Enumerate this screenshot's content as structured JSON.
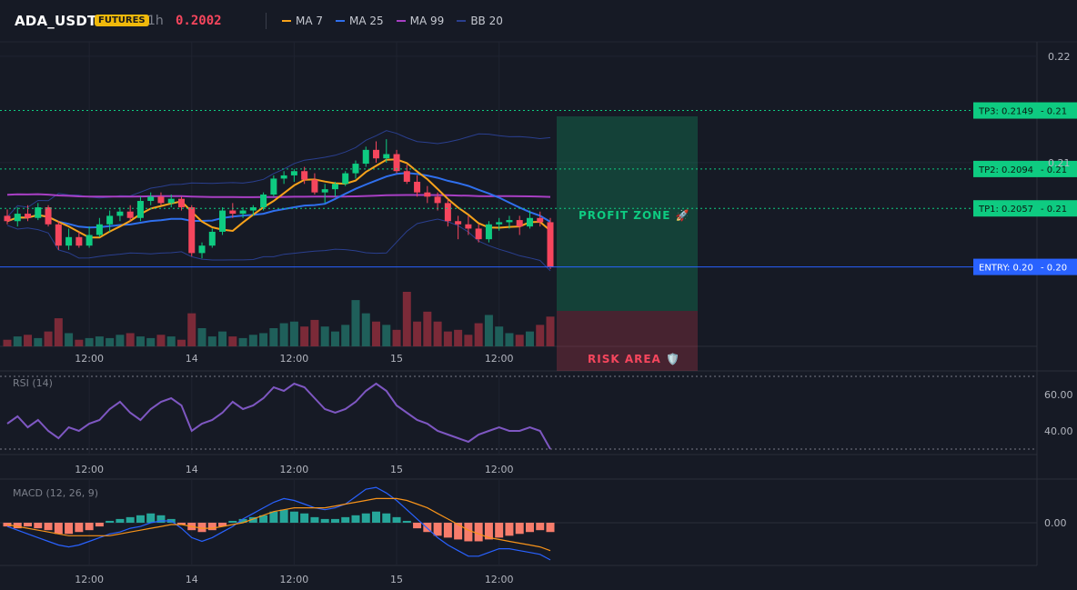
{
  "header": {
    "symbol": "ADA_USDT",
    "badge": "FUTURES",
    "interval": "1h",
    "price": "0.2002",
    "legend": [
      {
        "label": "MA 7",
        "color": "#f7a21b"
      },
      {
        "label": "MA 25",
        "color": "#2f6fed"
      },
      {
        "label": "MA 99",
        "color": "#a83fc4"
      },
      {
        "label": "BB 20",
        "color": "#2a3f8f"
      }
    ]
  },
  "colors": {
    "up": "#26a69a",
    "up_candle": "#0ecb81",
    "down": "#f6465d",
    "ma7": "#f7a21b",
    "ma25": "#2f6fed",
    "ma99": "#a83fc4",
    "bb": "#2a3f8f",
    "tp": "#0ecb81",
    "entry": "#2962ff",
    "rsi": "#7e57c2",
    "macd": "#2962ff",
    "signal": "#f7931a"
  },
  "chart_data": [
    {
      "type": "candlestick",
      "name": "price",
      "ylim": [
        0.1935,
        0.2205
      ],
      "y_ticks": [
        {
          "value": 0.22,
          "label": "0.22"
        },
        {
          "value": 0.21,
          "label": "0.21"
        }
      ],
      "x_ticks": [
        {
          "index": 8,
          "label": "12:00"
        },
        {
          "index": 18,
          "label": "14"
        },
        {
          "index": 28,
          "label": "12:00"
        },
        {
          "index": 38,
          "label": "15"
        },
        {
          "index": 48,
          "label": "12:00"
        }
      ],
      "ohlc": [
        [
          0.205,
          0.2056,
          0.2042,
          0.2045
        ],
        [
          0.2045,
          0.2058,
          0.204,
          0.2052
        ],
        [
          0.2052,
          0.206,
          0.2045,
          0.2048
        ],
        [
          0.2048,
          0.2062,
          0.2046,
          0.2058
        ],
        [
          0.2058,
          0.206,
          0.204,
          0.2042
        ],
        [
          0.2042,
          0.2045,
          0.2018,
          0.2022
        ],
        [
          0.2022,
          0.2038,
          0.2018,
          0.203
        ],
        [
          0.203,
          0.2035,
          0.202,
          0.2022
        ],
        [
          0.2022,
          0.204,
          0.202,
          0.2032
        ],
        [
          0.2032,
          0.2048,
          0.203,
          0.2042
        ],
        [
          0.2042,
          0.2055,
          0.2035,
          0.205
        ],
        [
          0.205,
          0.2058,
          0.2045,
          0.2054
        ],
        [
          0.2054,
          0.206,
          0.2045,
          0.2048
        ],
        [
          0.2048,
          0.2068,
          0.2045,
          0.2064
        ],
        [
          0.2064,
          0.2072,
          0.206,
          0.2068
        ],
        [
          0.2068,
          0.2072,
          0.206,
          0.2062
        ],
        [
          0.2062,
          0.207,
          0.2058,
          0.2066
        ],
        [
          0.2066,
          0.2068,
          0.2055,
          0.2058
        ],
        [
          0.2058,
          0.206,
          0.2012,
          0.2015
        ],
        [
          0.2015,
          0.2025,
          0.201,
          0.2022
        ],
        [
          0.2022,
          0.2038,
          0.202,
          0.2035
        ],
        [
          0.2035,
          0.2058,
          0.2032,
          0.2055
        ],
        [
          0.2055,
          0.2062,
          0.2048,
          0.2052
        ],
        [
          0.2052,
          0.2058,
          0.2048,
          0.2055
        ],
        [
          0.2055,
          0.206,
          0.205,
          0.2058
        ],
        [
          0.2058,
          0.2072,
          0.2055,
          0.207
        ],
        [
          0.207,
          0.2088,
          0.2068,
          0.2085
        ],
        [
          0.2085,
          0.2092,
          0.208,
          0.2088
        ],
        [
          0.2088,
          0.2094,
          0.2082,
          0.2092
        ],
        [
          0.2092,
          0.2096,
          0.208,
          0.2084
        ],
        [
          0.2084,
          0.209,
          0.207,
          0.2072
        ],
        [
          0.2072,
          0.208,
          0.2062,
          0.2075
        ],
        [
          0.2075,
          0.2082,
          0.2068,
          0.208
        ],
        [
          0.208,
          0.2092,
          0.2078,
          0.209
        ],
        [
          0.209,
          0.2102,
          0.2085,
          0.2099
        ],
        [
          0.2099,
          0.2115,
          0.2096,
          0.2112
        ],
        [
          0.2112,
          0.212,
          0.21,
          0.2104
        ],
        [
          0.2104,
          0.2122,
          0.21,
          0.2108
        ],
        [
          0.2108,
          0.2112,
          0.209,
          0.2092
        ],
        [
          0.2092,
          0.2098,
          0.208,
          0.2082
        ],
        [
          0.2082,
          0.2088,
          0.2068,
          0.2072
        ],
        [
          0.2072,
          0.2078,
          0.2062,
          0.2068
        ],
        [
          0.2068,
          0.2072,
          0.2055,
          0.2062
        ],
        [
          0.2062,
          0.2066,
          0.204,
          0.2045
        ],
        [
          0.2045,
          0.205,
          0.2028,
          0.2042
        ],
        [
          0.2042,
          0.205,
          0.2032,
          0.2038
        ],
        [
          0.2038,
          0.2042,
          0.2025,
          0.2028
        ],
        [
          0.2028,
          0.2045,
          0.2025,
          0.2042
        ],
        [
          0.2042,
          0.2048,
          0.2036,
          0.2044
        ],
        [
          0.2044,
          0.205,
          0.2038,
          0.2046
        ],
        [
          0.2046,
          0.205,
          0.2032,
          0.204
        ],
        [
          0.204,
          0.2055,
          0.2038,
          0.2048
        ],
        [
          0.2048,
          0.2054,
          0.204,
          0.2044
        ],
        [
          0.2044,
          0.2048,
          0.2,
          0.2002
        ]
      ],
      "volume": [
        8,
        12,
        14,
        10,
        18,
        34,
        16,
        8,
        10,
        12,
        10,
        14,
        16,
        12,
        10,
        14,
        12,
        8,
        40,
        22,
        12,
        18,
        12,
        10,
        14,
        16,
        22,
        28,
        30,
        24,
        32,
        24,
        18,
        26,
        56,
        40,
        30,
        26,
        20,
        66,
        30,
        42,
        30,
        18,
        20,
        14,
        28,
        38,
        24,
        16,
        14,
        18,
        26,
        36
      ]
    },
    {
      "type": "line",
      "name": "RSI (14)",
      "title": "RSI (14)",
      "ylim": [
        28,
        72
      ],
      "y_ticks": [
        {
          "value": 60,
          "label": "60.00"
        },
        {
          "value": 40,
          "label": "40.00"
        }
      ],
      "x_ticks": [
        "12:00",
        "14",
        "12:00",
        "15",
        "12:00"
      ],
      "values": [
        44,
        48,
        42,
        46,
        40,
        36,
        42,
        40,
        44,
        46,
        52,
        56,
        50,
        46,
        52,
        56,
        58,
        54,
        40,
        44,
        46,
        50,
        56,
        52,
        54,
        58,
        64,
        62,
        66,
        64,
        58,
        52,
        50,
        52,
        56,
        62,
        66,
        62,
        54,
        50,
        46,
        44,
        40,
        38,
        36,
        34,
        38,
        40,
        42,
        40,
        40,
        42,
        40,
        30
      ]
    },
    {
      "type": "bar+line",
      "name": "MACD (12, 26, 9)",
      "title": "MACD (12, 26, 9)",
      "ylim": [
        -0.0022,
        0.0022
      ],
      "y_ticks": [
        {
          "value": 0,
          "label": "0.00"
        }
      ],
      "x_ticks": [
        "12:00",
        "14",
        "12:00",
        "15",
        "12:00"
      ],
      "histogram": [
        -0.0002,
        -0.0003,
        -0.0002,
        -0.0003,
        -0.0004,
        -0.0006,
        -0.0006,
        -0.0005,
        -0.0004,
        -0.0002,
        0.0001,
        0.0002,
        0.0003,
        0.0004,
        0.0005,
        0.0004,
        0.0002,
        -0.0001,
        -0.0004,
        -0.0005,
        -0.0004,
        -0.0002,
        0.0001,
        0.0002,
        0.0003,
        0.0004,
        0.0006,
        0.0007,
        0.0006,
        0.0005,
        0.0003,
        0.0002,
        0.0002,
        0.0003,
        0.0004,
        0.0005,
        0.0006,
        0.0005,
        0.0003,
        0.0001,
        -0.0003,
        -0.0005,
        -0.0007,
        -0.0008,
        -0.0009,
        -0.001,
        -0.001,
        -0.0009,
        -0.0008,
        -0.0007,
        -0.0006,
        -0.0005,
        -0.0004,
        -0.0005
      ],
      "macd": [
        -0.0002,
        -0.0004,
        -0.0006,
        -0.0008,
        -0.001,
        -0.0012,
        -0.0013,
        -0.0012,
        -0.001,
        -0.0008,
        -0.0006,
        -0.0005,
        -0.0003,
        -0.0002,
        0.0,
        0.0001,
        0.0001,
        -0.0003,
        -0.0008,
        -0.001,
        -0.0008,
        -0.0005,
        -0.0002,
        0.0002,
        0.0005,
        0.0008,
        0.0011,
        0.0013,
        0.0012,
        0.001,
        0.0008,
        0.0007,
        0.0008,
        0.001,
        0.0014,
        0.0018,
        0.0019,
        0.0016,
        0.0012,
        0.0007,
        0.0002,
        -0.0003,
        -0.0008,
        -0.0012,
        -0.0015,
        -0.0018,
        -0.0018,
        -0.0016,
        -0.0014,
        -0.0014,
        -0.0015,
        -0.0016,
        -0.0017,
        -0.002
      ],
      "signal": [
        -0.0001,
        -0.0002,
        -0.0003,
        -0.0004,
        -0.0005,
        -0.0006,
        -0.0007,
        -0.0007,
        -0.0007,
        -0.0007,
        -0.0007,
        -0.0006,
        -0.0005,
        -0.0004,
        -0.0003,
        -0.0002,
        -0.0001,
        -0.0001,
        -0.0002,
        -0.0003,
        -0.0003,
        -0.0002,
        -0.0001,
        0.0,
        0.0002,
        0.0004,
        0.0006,
        0.0007,
        0.0008,
        0.0008,
        0.0008,
        0.0008,
        0.0009,
        0.001,
        0.0011,
        0.0012,
        0.0013,
        0.0013,
        0.0013,
        0.0012,
        0.001,
        0.0008,
        0.0005,
        0.0002,
        -0.0001,
        -0.0004,
        -0.0006,
        -0.0008,
        -0.0009,
        -0.001,
        -0.0011,
        -0.0012,
        -0.0013,
        -0.0015
      ]
    }
  ],
  "trade_levels": [
    {
      "key": "tp3",
      "label": "TP3: 0.2149",
      "axis_label": "0.21",
      "value": 0.2149
    },
    {
      "key": "tp2",
      "label": "TP2: 0.2094",
      "axis_label": "0.21",
      "value": 0.2094
    },
    {
      "key": "tp1",
      "label": "TP1: 0.2057",
      "axis_label": "0.21",
      "value": 0.2057
    },
    {
      "key": "entry",
      "label": "ENTRY: 0.2002",
      "axis_label": "0.20",
      "value": 0.2002
    }
  ],
  "zones": {
    "profit": "PROFIT ZONE 🚀",
    "risk": "RISK AREA 🛡️"
  }
}
